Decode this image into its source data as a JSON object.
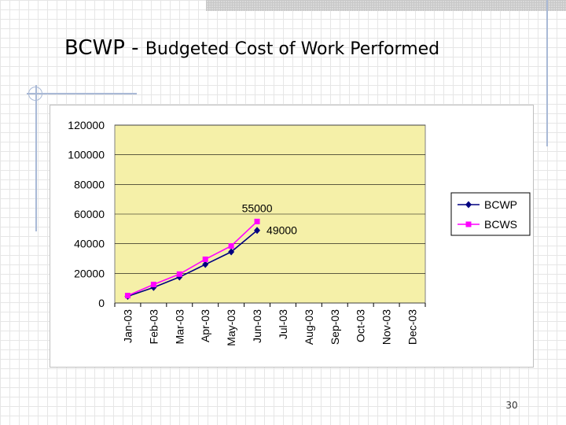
{
  "slide": {
    "title_acronym": "BCWP",
    "title_separator": " - ",
    "title_rest": "Budgeted Cost of Work Performed",
    "page_number": "30"
  },
  "chart_data": {
    "type": "line",
    "categories": [
      "Jan-03",
      "Feb-03",
      "Mar-03",
      "Apr-03",
      "May-03",
      "Jun-03",
      "Jul-03",
      "Aug-03",
      "Sep-03",
      "Oct-03",
      "Nov-03",
      "Dec-03"
    ],
    "ylim": [
      0,
      120000
    ],
    "yticks": [
      0,
      20000,
      40000,
      60000,
      80000,
      100000,
      120000
    ],
    "ytick_labels": [
      "0",
      "20000",
      "40000",
      "60000",
      "80000",
      "100000",
      "120000"
    ],
    "plot_background": "#f5f0a8",
    "grid": true,
    "legend_position": "right",
    "series": [
      {
        "name": "BCWP",
        "color": "#000080",
        "marker": "diamond",
        "values": [
          4500,
          10500,
          17500,
          26000,
          34500,
          49000,
          null,
          null,
          null,
          null,
          null,
          null
        ]
      },
      {
        "name": "BCWS",
        "color": "#ff00ff",
        "marker": "square",
        "values": [
          5000,
          12500,
          19500,
          29500,
          38500,
          55000,
          null,
          null,
          null,
          null,
          null,
          null
        ]
      }
    ],
    "annotations": [
      {
        "series": "BCWS",
        "category": "Jun-03",
        "text": "55000"
      },
      {
        "series": "BCWP",
        "category": "Jun-03",
        "text": "49000"
      }
    ]
  }
}
